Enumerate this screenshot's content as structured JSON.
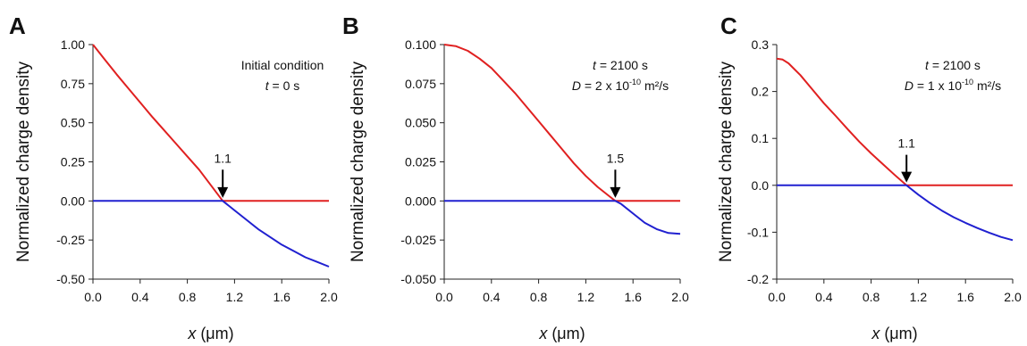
{
  "colors": {
    "positive": "#e02020",
    "negative": "#2020d0",
    "axis": "#222222",
    "arrow": "#000000"
  },
  "chart_data": [
    {
      "type": "line",
      "panel_label": "A",
      "ylabel": "Normalized charge density",
      "xlabel_var": "x",
      "xlabel_unit": " (μm)",
      "xlim": [
        0,
        2.0
      ],
      "ylim": [
        -0.5,
        1.0
      ],
      "xticks": [
        "0.0",
        "0.4",
        "0.8",
        "1.2",
        "1.6",
        "2.0"
      ],
      "xtick_values": [
        0,
        0.4,
        0.8,
        1.2,
        1.6,
        2.0
      ],
      "yticks": [
        "-0.50",
        "-0.25",
        "0.00",
        "0.25",
        "0.50",
        "0.75",
        "1.00"
      ],
      "ytick_values": [
        -0.5,
        -0.25,
        0,
        0.25,
        0.5,
        0.75,
        1.0
      ],
      "annotation": {
        "line1": "Initial condition",
        "line2_var": "t",
        "line2_rest": " = 0 s"
      },
      "arrow": {
        "x": 1.1,
        "label": "1.1",
        "y_top": 0.2,
        "y_tip": 0.02
      },
      "series": [
        {
          "color_key": "positive",
          "x": [
            0,
            0.1,
            0.2,
            0.3,
            0.4,
            0.5,
            0.6,
            0.7,
            0.8,
            0.9,
            1.0,
            1.1,
            1.2,
            1.4,
            1.6,
            1.8,
            2.0
          ],
          "y": [
            1.0,
            0.905,
            0.81,
            0.72,
            0.63,
            0.54,
            0.455,
            0.37,
            0.285,
            0.2,
            0.1,
            0,
            0,
            0,
            0,
            0,
            0
          ]
        },
        {
          "color_key": "negative",
          "x": [
            0,
            0.2,
            0.4,
            0.6,
            0.8,
            1.0,
            1.1,
            1.2,
            1.3,
            1.4,
            1.5,
            1.6,
            1.7,
            1.8,
            1.9,
            2.0
          ],
          "y": [
            0,
            0,
            0,
            0,
            0,
            0,
            0,
            -0.06,
            -0.12,
            -0.18,
            -0.23,
            -0.28,
            -0.32,
            -0.36,
            -0.39,
            -0.42
          ]
        }
      ]
    },
    {
      "type": "line",
      "panel_label": "B",
      "ylabel": "Normalized charge density",
      "xlabel_var": "x",
      "xlabel_unit": " (μm)",
      "xlim": [
        0,
        2.0
      ],
      "ylim": [
        -0.05,
        0.1
      ],
      "xticks": [
        "0.0",
        "0.4",
        "0.8",
        "1.2",
        "1.6",
        "2.0"
      ],
      "xtick_values": [
        0,
        0.4,
        0.8,
        1.2,
        1.6,
        2.0
      ],
      "yticks": [
        "-0.050",
        "-0.025",
        "0.000",
        "0.025",
        "0.050",
        "0.075",
        "0.100"
      ],
      "ytick_values": [
        -0.05,
        -0.025,
        0,
        0.025,
        0.05,
        0.075,
        0.1
      ],
      "annotation": {
        "line1_var": "t",
        "line1_rest": " = 2100 s",
        "line2_var": "D",
        "line2_rest": " = 2 x 10",
        "line2_exp": "-10",
        "line2_tail": " m²/s"
      },
      "arrow": {
        "x": 1.45,
        "label": "1.5",
        "y_top": 0.02,
        "y_tip": 0.002
      },
      "series": [
        {
          "color_key": "positive",
          "x": [
            0,
            0.1,
            0.2,
            0.3,
            0.4,
            0.5,
            0.6,
            0.7,
            0.8,
            0.9,
            1.0,
            1.1,
            1.2,
            1.3,
            1.4,
            1.45,
            1.6,
            1.8,
            2.0
          ],
          "y": [
            0.1,
            0.099,
            0.096,
            0.091,
            0.085,
            0.077,
            0.069,
            0.06,
            0.051,
            0.042,
            0.033,
            0.024,
            0.016,
            0.009,
            0.003,
            0,
            0,
            0,
            0
          ]
        },
        {
          "color_key": "negative",
          "x": [
            0,
            0.4,
            0.8,
            1.2,
            1.45,
            1.5,
            1.6,
            1.7,
            1.8,
            1.9,
            2.0
          ],
          "y": [
            0,
            0,
            0,
            0,
            0,
            -0.002,
            -0.008,
            -0.014,
            -0.018,
            -0.0205,
            -0.021
          ]
        }
      ]
    },
    {
      "type": "line",
      "panel_label": "C",
      "ylabel": "Normalized charge density",
      "xlabel_var": "x",
      "xlabel_unit": " (μm)",
      "xlim": [
        0,
        2.0
      ],
      "ylim": [
        -0.2,
        0.3
      ],
      "xticks": [
        "0.0",
        "0.4",
        "0.8",
        "1.2",
        "1.6",
        "2.0"
      ],
      "xtick_values": [
        0,
        0.4,
        0.8,
        1.2,
        1.6,
        2.0
      ],
      "yticks": [
        "-0.2",
        "-0.1",
        "0.0",
        "0.1",
        "0.2",
        "0.3"
      ],
      "ytick_values": [
        -0.2,
        -0.1,
        0,
        0.1,
        0.2,
        0.3
      ],
      "annotation": {
        "line1_var": "t",
        "line1_rest": " = 2100 s",
        "line2_var": "D",
        "line2_rest": " = 1 x 10",
        "line2_exp": "-10",
        "line2_tail": " m²/s"
      },
      "arrow": {
        "x": 1.1,
        "label": "1.1",
        "y_top": 0.065,
        "y_tip": 0.006
      },
      "series": [
        {
          "color_key": "positive",
          "x": [
            0,
            0.05,
            0.1,
            0.2,
            0.3,
            0.4,
            0.5,
            0.6,
            0.7,
            0.8,
            0.9,
            1.0,
            1.1,
            1.2,
            1.4,
            1.6,
            1.8,
            2.0
          ],
          "y": [
            0.27,
            0.268,
            0.26,
            0.235,
            0.205,
            0.175,
            0.148,
            0.12,
            0.093,
            0.068,
            0.045,
            0.022,
            0,
            0,
            0,
            0,
            0,
            0
          ]
        },
        {
          "color_key": "negative",
          "x": [
            0,
            0.4,
            0.8,
            1.1,
            1.2,
            1.3,
            1.4,
            1.5,
            1.6,
            1.7,
            1.8,
            1.9,
            2.0
          ],
          "y": [
            0,
            0,
            0,
            0,
            -0.02,
            -0.038,
            -0.054,
            -0.068,
            -0.08,
            -0.091,
            -0.101,
            -0.11,
            -0.117
          ]
        }
      ]
    }
  ]
}
